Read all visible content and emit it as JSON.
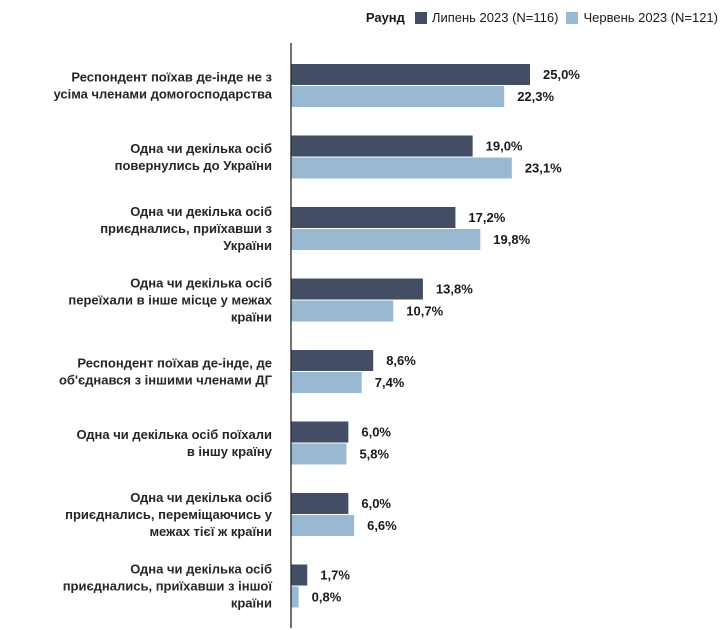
{
  "legend": {
    "title": "Раунд"
  },
  "colors": {
    "july": "#434e64",
    "june": "#99b9d3",
    "axis": "#262626"
  },
  "chart_data": {
    "type": "bar",
    "orientation": "horizontal",
    "xlim": [
      0,
      25
    ],
    "grid": false,
    "legend_position": "top-right",
    "categories": [
      [
        "Респондент поїхав де-інде не з",
        "усіма членами домогосподарства"
      ],
      [
        "Одна чи декілька осіб",
        "повернулись до України"
      ],
      [
        "Одна чи декілька осіб",
        "приєднались, приїхавши з",
        "України"
      ],
      [
        "Одна чи декілька осіб",
        "переїхали в інше місце у межах",
        "країни"
      ],
      [
        "Респондент поїхав де-інде, де",
        "об'єднався з іншими членами ДГ"
      ],
      [
        "Одна чи декілька осіб поїхали",
        "в іншу країну"
      ],
      [
        "Одна чи декілька осіб",
        "приєднались, переміщаючись у",
        "межах тієї ж країни"
      ],
      [
        "Одна чи декілька осіб",
        "приєднались, приїхавши з іншої",
        "країни"
      ]
    ],
    "series": [
      {
        "name": "Липень 2023 (N=116)",
        "values": [
          25.0,
          19.0,
          17.2,
          13.8,
          8.6,
          6.0,
          6.0,
          1.7
        ],
        "labels": [
          "25,0%",
          "19,0%",
          "17,2%",
          "13,8%",
          "8,6%",
          "6,0%",
          "6,0%",
          "1,7%"
        ]
      },
      {
        "name": "Червень 2023 (N=121)",
        "values": [
          22.3,
          23.1,
          19.8,
          10.7,
          7.4,
          5.8,
          6.6,
          0.8
        ],
        "labels": [
          "22,3%",
          "23,1%",
          "19,8%",
          "10,7%",
          "7,4%",
          "5,8%",
          "6,6%",
          "0,8%"
        ]
      }
    ]
  }
}
